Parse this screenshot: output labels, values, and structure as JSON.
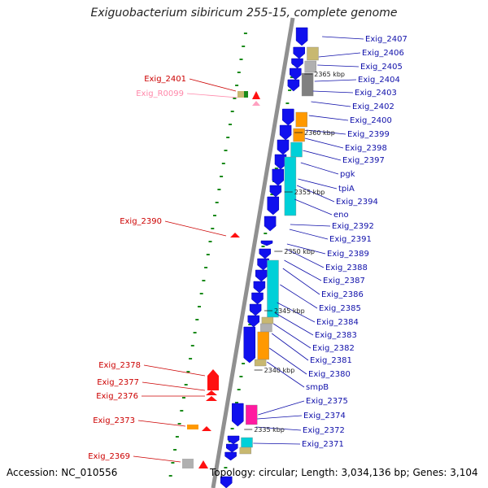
{
  "title": "Exiguobacterium sibiricum 255-15, complete genome",
  "footer": {
    "accession": "Accession: NC_010556",
    "summary": "Topology: circular; Length: 3,034,136 bp; Genes: 3,104"
  },
  "colors": {
    "gene_blue": "#1010ee",
    "cyan": "#00d0d8",
    "orange": "#ff9900",
    "khaki": "#c8b870",
    "gray": "#b0b0b0",
    "dark_gray": "#808080",
    "magenta": "#ff1aa0",
    "red": "#ff1010",
    "pink": "#ffa0c0",
    "green_dots": "#1a8a1a",
    "label_blue": "#1010aa",
    "label_red": "#cc0000",
    "label_pink": "#ff88aa"
  },
  "ticks": [
    "2365 kbp",
    "2360 kbp",
    "2355 kbp",
    "2350 kbp",
    "2345 kbp",
    "2340 kbp",
    "2335 kbp"
  ],
  "right_labels": [
    "Exig_2407",
    "Exig_2406",
    "Exig_2405",
    "Exig_2404",
    "Exig_2403",
    "Exig_2402",
    "Exig_2400",
    "Exig_2399",
    "Exig_2398",
    "Exig_2397",
    "pgk",
    "tpiA",
    "Exig_2394",
    "eno",
    "Exig_2392",
    "Exig_2391",
    "Exig_2389",
    "Exig_2388",
    "Exig_2387",
    "Exig_2386",
    "Exig_2385",
    "Exig_2384",
    "Exig_2383",
    "Exig_2382",
    "Exig_2381",
    "Exig_2380",
    "smpB",
    "Exig_2375",
    "Exig_2374",
    "Exig_2372",
    "Exig_2371"
  ],
  "left_labels": [
    "Exig_2401",
    "Exig_R0099",
    "Exig_2390",
    "Exig_2378",
    "Exig_2377",
    "Exig_2376",
    "Exig_2373",
    "Exig_2369"
  ]
}
